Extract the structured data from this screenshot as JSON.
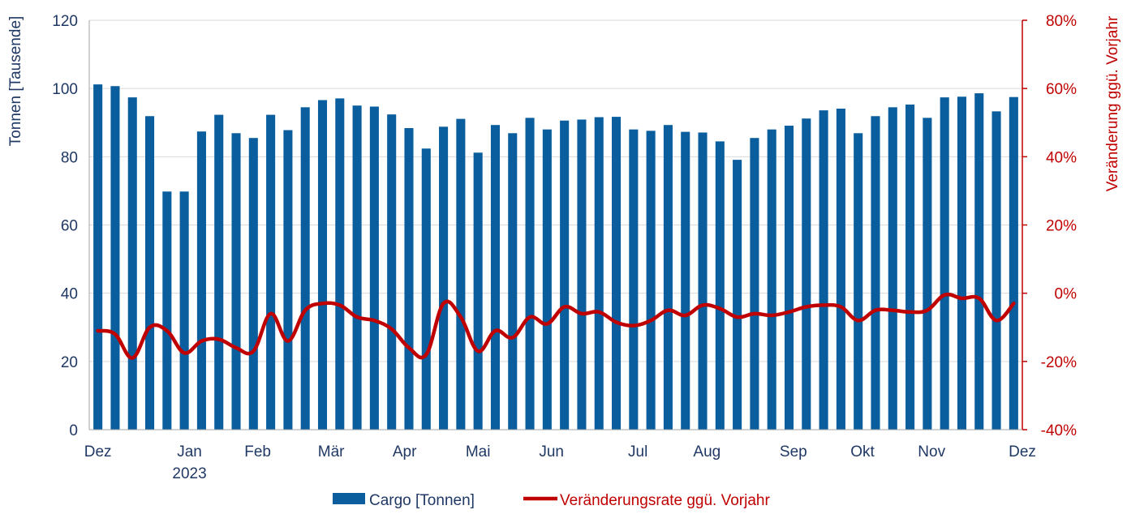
{
  "chart_data": {
    "type": "bar+line",
    "title": "",
    "ylabel_left": "Tonnen [Tausende]",
    "ylabel_right": "Veränderung ggü. Vorjahr",
    "ylim_left": [
      0,
      120
    ],
    "yticks_left": [
      "0",
      "20",
      "40",
      "60",
      "80",
      "100",
      "120"
    ],
    "ylim_right": [
      -40,
      80
    ],
    "yticks_right": [
      "-40%",
      "-20%",
      "0%",
      "20%",
      "40%",
      "60%",
      "80%"
    ],
    "x_tick_labels": [
      {
        "label": "Dez",
        "index": 0
      },
      {
        "label": "Jan",
        "index": 5.3
      },
      {
        "label": "Feb",
        "index": 9.25
      },
      {
        "label": "Mär",
        "index": 13.5
      },
      {
        "label": "Apr",
        "index": 17.75
      },
      {
        "label": "Mai",
        "index": 22
      },
      {
        "label": "Jun",
        "index": 26.25
      },
      {
        "label": "Jul",
        "index": 31.25
      },
      {
        "label": "Aug",
        "index": 35.25
      },
      {
        "label": "Sep",
        "index": 40.25
      },
      {
        "label": "Okt",
        "index": 44.25
      },
      {
        "label": "Nov",
        "index": 48.25
      },
      {
        "label": "Dez",
        "index": 53.5
      }
    ],
    "year_label": {
      "label": "2023",
      "index": 5.3
    },
    "series": [
      {
        "name": "Cargo [Tonnen]",
        "type": "bar",
        "color": "#0a5e9e",
        "values": [
          101.2,
          100.7,
          97.4,
          91.9,
          69.8,
          69.8,
          87.4,
          92.3,
          86.9,
          85.5,
          92.3,
          87.8,
          94.5,
          96.6,
          97.1,
          95.0,
          94.7,
          92.4,
          88.4,
          82.4,
          88.8,
          91.1,
          81.2,
          89.3,
          86.9,
          91.4,
          88.0,
          90.6,
          90.9,
          91.6,
          91.7,
          88.0,
          87.6,
          89.3,
          87.3,
          87.1,
          84.5,
          79.1,
          85.5,
          88.0,
          89.1,
          91.2,
          93.6,
          94.1,
          86.9,
          91.9,
          94.5,
          95.3,
          91.4,
          97.4,
          97.6,
          98.6,
          93.3,
          97.5
        ]
      },
      {
        "name": "Veränderungsrate ggü. Vorjahr",
        "type": "line",
        "color": "#c00000",
        "values": [
          -11,
          -12,
          -19,
          -10,
          -11,
          -17.5,
          -14,
          -13.5,
          -16,
          -17,
          -6,
          -14,
          -5,
          -3,
          -3.5,
          -7,
          -8,
          -10.5,
          -16,
          -18,
          -3,
          -7,
          -17,
          -11,
          -13,
          -7,
          -9,
          -4,
          -6,
          -5.5,
          -8.5,
          -9.5,
          -8,
          -5,
          -6.5,
          -3.5,
          -4.5,
          -7,
          -6,
          -6.5,
          -5.5,
          -4,
          -3.5,
          -4,
          -8,
          -5,
          -5,
          -5.5,
          -5,
          -0.5,
          -1.5,
          -1.5,
          -8,
          -3
        ]
      }
    ],
    "legend": {
      "position": "bottom",
      "items": [
        {
          "label": "Cargo [Tonnen]",
          "color": "#0a5e9e",
          "marker": "bar"
        },
        {
          "label": "Veränderungsrate ggü. Vorjahr",
          "color": "#c00000",
          "marker": "line"
        }
      ]
    }
  }
}
